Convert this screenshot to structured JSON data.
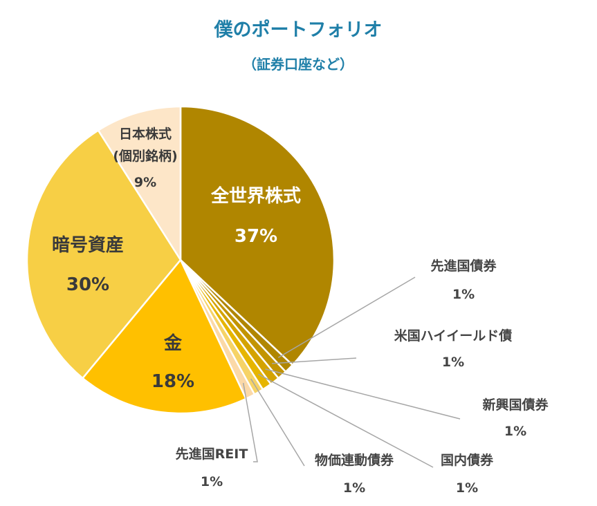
{
  "chart_data": {
    "type": "pie",
    "title": "僕のポートフォリオ",
    "subtitle": "（証券口座など）",
    "start_angle_deg": 0,
    "direction": "clockwise",
    "slices": [
      {
        "label": "全世界株式",
        "value": 37,
        "value_label": "37%",
        "color": "#b08600"
      },
      {
        "label": "先進国債券",
        "value": 1,
        "value_label": "1%",
        "color": "#b08600"
      },
      {
        "label": "米国ハイイールド債",
        "value": 1,
        "value_label": "1%",
        "color": "#c29400"
      },
      {
        "label": "新興国債券",
        "value": 1,
        "value_label": "1%",
        "color": "#d4a300"
      },
      {
        "label": "国内債券",
        "value": 1,
        "value_label": "1%",
        "color": "#e6b500"
      },
      {
        "label": "物価連動債券",
        "value": 1,
        "value_label": "1%",
        "color": "#f6d366"
      },
      {
        "label": "先進国REIT",
        "value": 1,
        "value_label": "1%",
        "color": "#fbd9a8"
      },
      {
        "label": "金",
        "value": 18,
        "value_label": "18%",
        "color": "#ffc000"
      },
      {
        "label": "暗号資産",
        "value": 30,
        "value_label": "30%",
        "color": "#f7cf45"
      },
      {
        "label": "日本株式",
        "label2": "(個別銘柄)",
        "value": 9,
        "value_label": "9%",
        "color": "#fde6c8"
      }
    ]
  }
}
